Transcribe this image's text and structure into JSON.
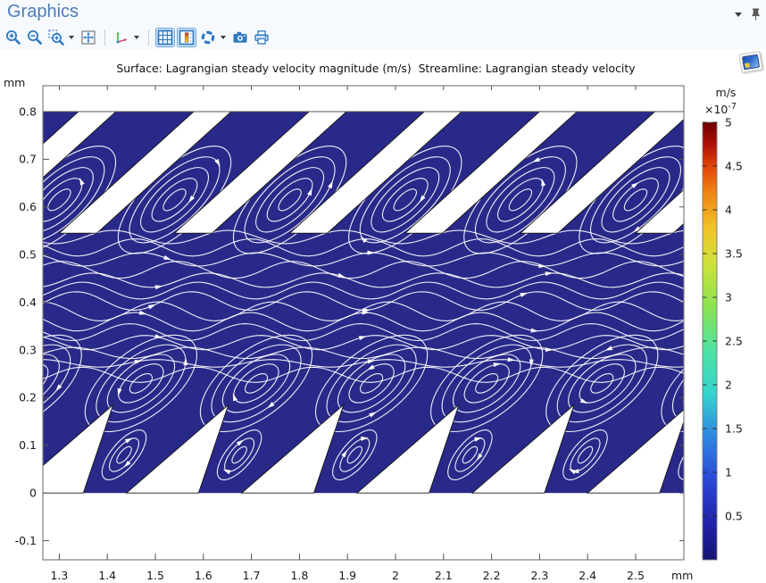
{
  "window": {
    "title": "Graphics",
    "header_controls": [
      {
        "id": "collapse-panel",
        "icon": "chevron-down-icon"
      },
      {
        "id": "pin-panel",
        "icon": "pin-icon"
      }
    ]
  },
  "toolbar": {
    "items": [
      {
        "id": "zoom-in",
        "icon": "zoom-in-icon",
        "active": false,
        "has_dropdown": false
      },
      {
        "id": "zoom-out",
        "icon": "zoom-out-icon",
        "active": false,
        "has_dropdown": false
      },
      {
        "id": "zoom-box",
        "icon": "zoom-box-icon",
        "active": false,
        "has_dropdown": true
      },
      {
        "id": "zoom-extents",
        "icon": "zoom-extents-icon",
        "active": false,
        "has_dropdown": false
      },
      {
        "id": "go-to-default-view",
        "icon": "axis-triad-icon",
        "active": false,
        "has_dropdown": true
      },
      {
        "id": "show-grid",
        "icon": "grid-icon",
        "active": true,
        "has_dropdown": false
      },
      {
        "id": "show-color-legend",
        "icon": "color-legend-icon",
        "active": true,
        "has_dropdown": false
      },
      {
        "id": "scene-light",
        "icon": "aperture-icon",
        "active": false,
        "has_dropdown": true
      },
      {
        "id": "image-snapshot",
        "icon": "camera-icon",
        "active": false,
        "has_dropdown": false
      },
      {
        "id": "print",
        "icon": "printer-icon",
        "active": false,
        "has_dropdown": false
      }
    ]
  },
  "chart_data": {
    "type": "surface_streamline",
    "title": "Surface: Lagrangian steady velocity magnitude (m/s)  Streamline: Lagrangian steady velocity",
    "x_axis": {
      "unit": "mm",
      "tick_labels": [
        "1.3",
        "1.4",
        "1.5",
        "1.6",
        "1.7",
        "1.8",
        "1.9",
        "2",
        "2.1",
        "2.2",
        "2.3",
        "2.4",
        "2.5"
      ],
      "range": [
        1.266,
        2.6
      ]
    },
    "y_axis": {
      "unit": "mm",
      "tick_labels": [
        "0.8",
        "0.7",
        "0.6",
        "0.5",
        "0.4",
        "0.3",
        "0.2",
        "0.1",
        "0",
        "-0.1"
      ],
      "range": [
        -0.14,
        0.854
      ]
    },
    "colorbar": {
      "unit": "m/s",
      "multiplier_base": "×10",
      "multiplier_exponent": "-7",
      "min": 0,
      "max": 5,
      "tick_labels": [
        "5",
        "4.5",
        "4",
        "3.5",
        "3",
        "2.5",
        "2",
        "1.5",
        "1",
        "0.5"
      ],
      "colormap": "rainbow",
      "stops": [
        [
          0,
          "#141474"
        ],
        [
          0.08,
          "#2121a5"
        ],
        [
          0.18,
          "#2b46d8"
        ],
        [
          0.28,
          "#2e86e0"
        ],
        [
          0.38,
          "#35d3cf"
        ],
        [
          0.48,
          "#4fe3a1"
        ],
        [
          0.58,
          "#8ce24f"
        ],
        [
          0.68,
          "#cfe23a"
        ],
        [
          0.76,
          "#f2c227"
        ],
        [
          0.84,
          "#f08414"
        ],
        [
          0.9,
          "#e2430a"
        ],
        [
          0.95,
          "#ad0f05"
        ],
        [
          1,
          "#6e0000"
        ]
      ]
    },
    "surface_fill_color": "#29298a",
    "streamline_color": "#ffffff",
    "geometry": {
      "channel_bottom_mm": 0,
      "channel_top_mm": 0.8,
      "pattern_period_mm": 0.24,
      "top_blade_gap_width_mm": 0.078,
      "top_blade_gap_depth_mm": 0.255,
      "blade_slant_deg": 42,
      "bottom_tooth_base_mm": 0.15,
      "bottom_tooth_height_mm": 0.185,
      "top_vortex_row_y_mm": 0.615,
      "bottom_vortex_row_y_mm": 0.23,
      "small_vortex_row_y_mm": 0.08
    }
  }
}
